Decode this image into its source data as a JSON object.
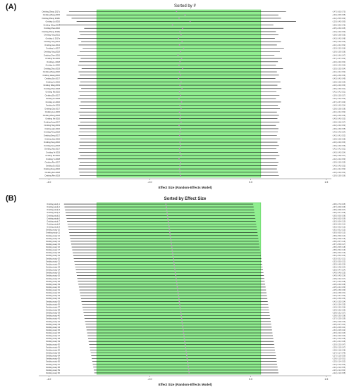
{
  "panels": [
    {
      "label": "(A)",
      "title": "Sorted by I²",
      "xlabel": "Effect Size (Random-Effects Model)"
    },
    {
      "label": "(B)",
      "title": "Sorted by Effect Size",
      "xlabel": "Effect Size (Random-Effects Model)"
    }
  ],
  "colors": {
    "band": "#90ee90",
    "band_edge": "#5ccf5c",
    "line": "#111111",
    "point": "#c060c0"
  },
  "chart_data": [
    {
      "type": "forest",
      "title": "Sorted by I²",
      "xlabel": "Effect Size (Random-Effects Model)",
      "xlim": [
        -4.2,
        1.6
      ],
      "xticks": [
        -4.0,
        -2.0,
        0.0,
        1.5
      ],
      "band": [
        -3.05,
        0.2
      ],
      "n_rows": 50,
      "rows": [
        {
          "study": "Omitting Zhang 2017c",
          "est": -1.47,
          "lo": -3.6,
          "hi": 0.7
        },
        {
          "study": "Omitting Zhang 2015",
          "est": -1.3,
          "lo": -3.65,
          "hi": 0.55
        },
        {
          "study": "Omitting Zhang 2016b",
          "est": -1.42,
          "lo": -3.55,
          "hi": 0.6
        },
        {
          "study": "Omitting Liu 2016",
          "est": -1.2,
          "lo": -3.45,
          "hi": 0.9
        },
        {
          "study": "Omitting Wang 2017",
          "est": -1.55,
          "lo": -3.8,
          "hi": 0.45
        },
        {
          "study": "Omitting Zhao 2016",
          "est": -1.35,
          "lo": -3.3,
          "hi": 0.65
        },
        {
          "study": "Omitting Zhang 2018a",
          "est": -1.4,
          "lo": -3.4,
          "hi": 0.5
        },
        {
          "study": "Omitting Yang 2021",
          "est": -1.38,
          "lo": -3.38,
          "hi": 0.55
        },
        {
          "study": "Omitting Li 2017a",
          "est": -1.43,
          "lo": -3.43,
          "hi": 0.48
        },
        {
          "study": "Omitting Yang 2014",
          "est": -1.36,
          "lo": -3.36,
          "hi": 0.6
        },
        {
          "study": "Omitting Guo 2014",
          "est": -1.41,
          "lo": -3.41,
          "hi": 0.52
        },
        {
          "study": "Omitting Lu 2017",
          "est": -1.33,
          "lo": -3.33,
          "hi": 0.66
        },
        {
          "study": "Omitting Yang 2018",
          "est": -1.39,
          "lo": -3.39,
          "hi": 0.58
        },
        {
          "study": "Omitting Chen 2016",
          "est": -1.44,
          "lo": -3.44,
          "hi": 0.47
        },
        {
          "study": "Omitting Wu 2015",
          "est": -1.37,
          "lo": -3.37,
          "hi": 0.62
        },
        {
          "study": "Omitting Li 2018",
          "est": -1.4,
          "lo": -3.4,
          "hi": 0.54
        },
        {
          "study": "Omitting Liu 2020",
          "est": -1.42,
          "lo": -3.42,
          "hi": 0.5
        },
        {
          "study": "Omitting Zhou 2019",
          "est": -1.35,
          "lo": -3.35,
          "hi": 0.64
        },
        {
          "study": "Omitting Zhang 2020",
          "est": -1.41,
          "lo": -3.41,
          "hi": 0.52
        },
        {
          "study": "Omitting Huang 2016",
          "est": -1.39,
          "lo": -3.39,
          "hi": 0.56
        },
        {
          "study": "Omitting Sun 2017",
          "est": -1.43,
          "lo": -3.43,
          "hi": 0.49
        },
        {
          "study": "Omitting Xu 2015",
          "est": -1.38,
          "lo": -3.38,
          "hi": 0.59
        },
        {
          "study": "Omitting Wang 2019",
          "est": -1.4,
          "lo": -3.4,
          "hi": 0.53
        },
        {
          "study": "Omitting Zhao 2018",
          "est": -1.36,
          "lo": -3.36,
          "hi": 0.61
        },
        {
          "study": "Omitting Ma 2016",
          "est": -1.41,
          "lo": -3.41,
          "hi": 0.51
        },
        {
          "study": "Omitting Zhu 2017",
          "est": -1.39,
          "lo": -3.39,
          "hi": 0.57
        },
        {
          "study": "Omitting Hu 2018",
          "est": -1.42,
          "lo": -3.42,
          "hi": 0.5
        },
        {
          "study": "Omitting Lin 2016",
          "est": -1.37,
          "lo": -3.37,
          "hi": 0.6
        },
        {
          "study": "Omitting He 2019",
          "est": -1.4,
          "lo": -3.4,
          "hi": 0.54
        },
        {
          "study": "Omitting Gao 2017",
          "est": -1.38,
          "lo": -3.38,
          "hi": 0.58
        },
        {
          "study": "Omitting Luo 2015",
          "est": -1.41,
          "lo": -3.41,
          "hi": 0.52
        },
        {
          "study": "Omitting Zheng 2018",
          "est": -1.39,
          "lo": -3.39,
          "hi": 0.56
        },
        {
          "study": "Omitting Xie 2016",
          "est": -1.4,
          "lo": -3.4,
          "hi": 0.53
        },
        {
          "study": "Omitting Song 2017",
          "est": -1.38,
          "lo": -3.38,
          "hi": 0.57
        },
        {
          "study": "Omitting Tang 2019",
          "est": -1.42,
          "lo": -3.42,
          "hi": 0.5
        },
        {
          "study": "Omitting Han 2016",
          "est": -1.39,
          "lo": -3.39,
          "hi": 0.55
        },
        {
          "study": "Omitting Feng 2018",
          "est": -1.4,
          "lo": -3.4,
          "hi": 0.54
        },
        {
          "study": "Omitting Deng 2017",
          "est": -1.41,
          "lo": -3.41,
          "hi": 0.52
        },
        {
          "study": "Omitting Cao 2015",
          "est": -1.38,
          "lo": -3.38,
          "hi": 0.58
        },
        {
          "study": "Omitting Peng 2016",
          "est": -1.4,
          "lo": -3.4,
          "hi": 0.53
        },
        {
          "study": "Omitting Zeng 2018",
          "est": -1.39,
          "lo": -3.39,
          "hi": 0.56
        },
        {
          "study": "Omitting Xiao 2017",
          "est": -1.41,
          "lo": -3.41,
          "hi": 0.51
        },
        {
          "study": "Omitting Ye 2019",
          "est": -1.4,
          "lo": -3.4,
          "hi": 0.54
        },
        {
          "study": "Omitting Shi 2016",
          "est": -1.38,
          "lo": -3.38,
          "hi": 0.57
        },
        {
          "study": "Omitting Yu 2018",
          "est": -1.42,
          "lo": -3.42,
          "hi": 0.5
        },
        {
          "study": "Omitting Pan 2017",
          "est": -1.39,
          "lo": -3.39,
          "hi": 0.55
        },
        {
          "study": "Omitting Du 2015",
          "est": -1.4,
          "lo": -3.4,
          "hi": 0.53
        },
        {
          "study": "Omitting Dong 2016",
          "est": -1.41,
          "lo": -3.41,
          "hi": 0.52
        },
        {
          "study": "Omitting Fan 2018",
          "est": -1.4,
          "lo": -3.4,
          "hi": 0.54
        },
        {
          "study": "Omitting Ren 2019",
          "est": -1.39,
          "lo": -3.39,
          "hi": 0.56
        }
      ]
    },
    {
      "type": "forest",
      "title": "Sorted by Effect Size",
      "xlabel": "Effect Size (Random-Effects Model)",
      "xlim": [
        -4.2,
        1.6
      ],
      "xticks": [
        -4.0,
        -2.0,
        0.0,
        1.5
      ],
      "band": [
        -3.05,
        0.2
      ],
      "n_rows": 60,
      "est_start": -1.68,
      "est_end": -1.22,
      "lo_start": -3.7,
      "lo_end": -3.1,
      "hi_start": 0.05,
      "hi_end": 0.55
    }
  ]
}
